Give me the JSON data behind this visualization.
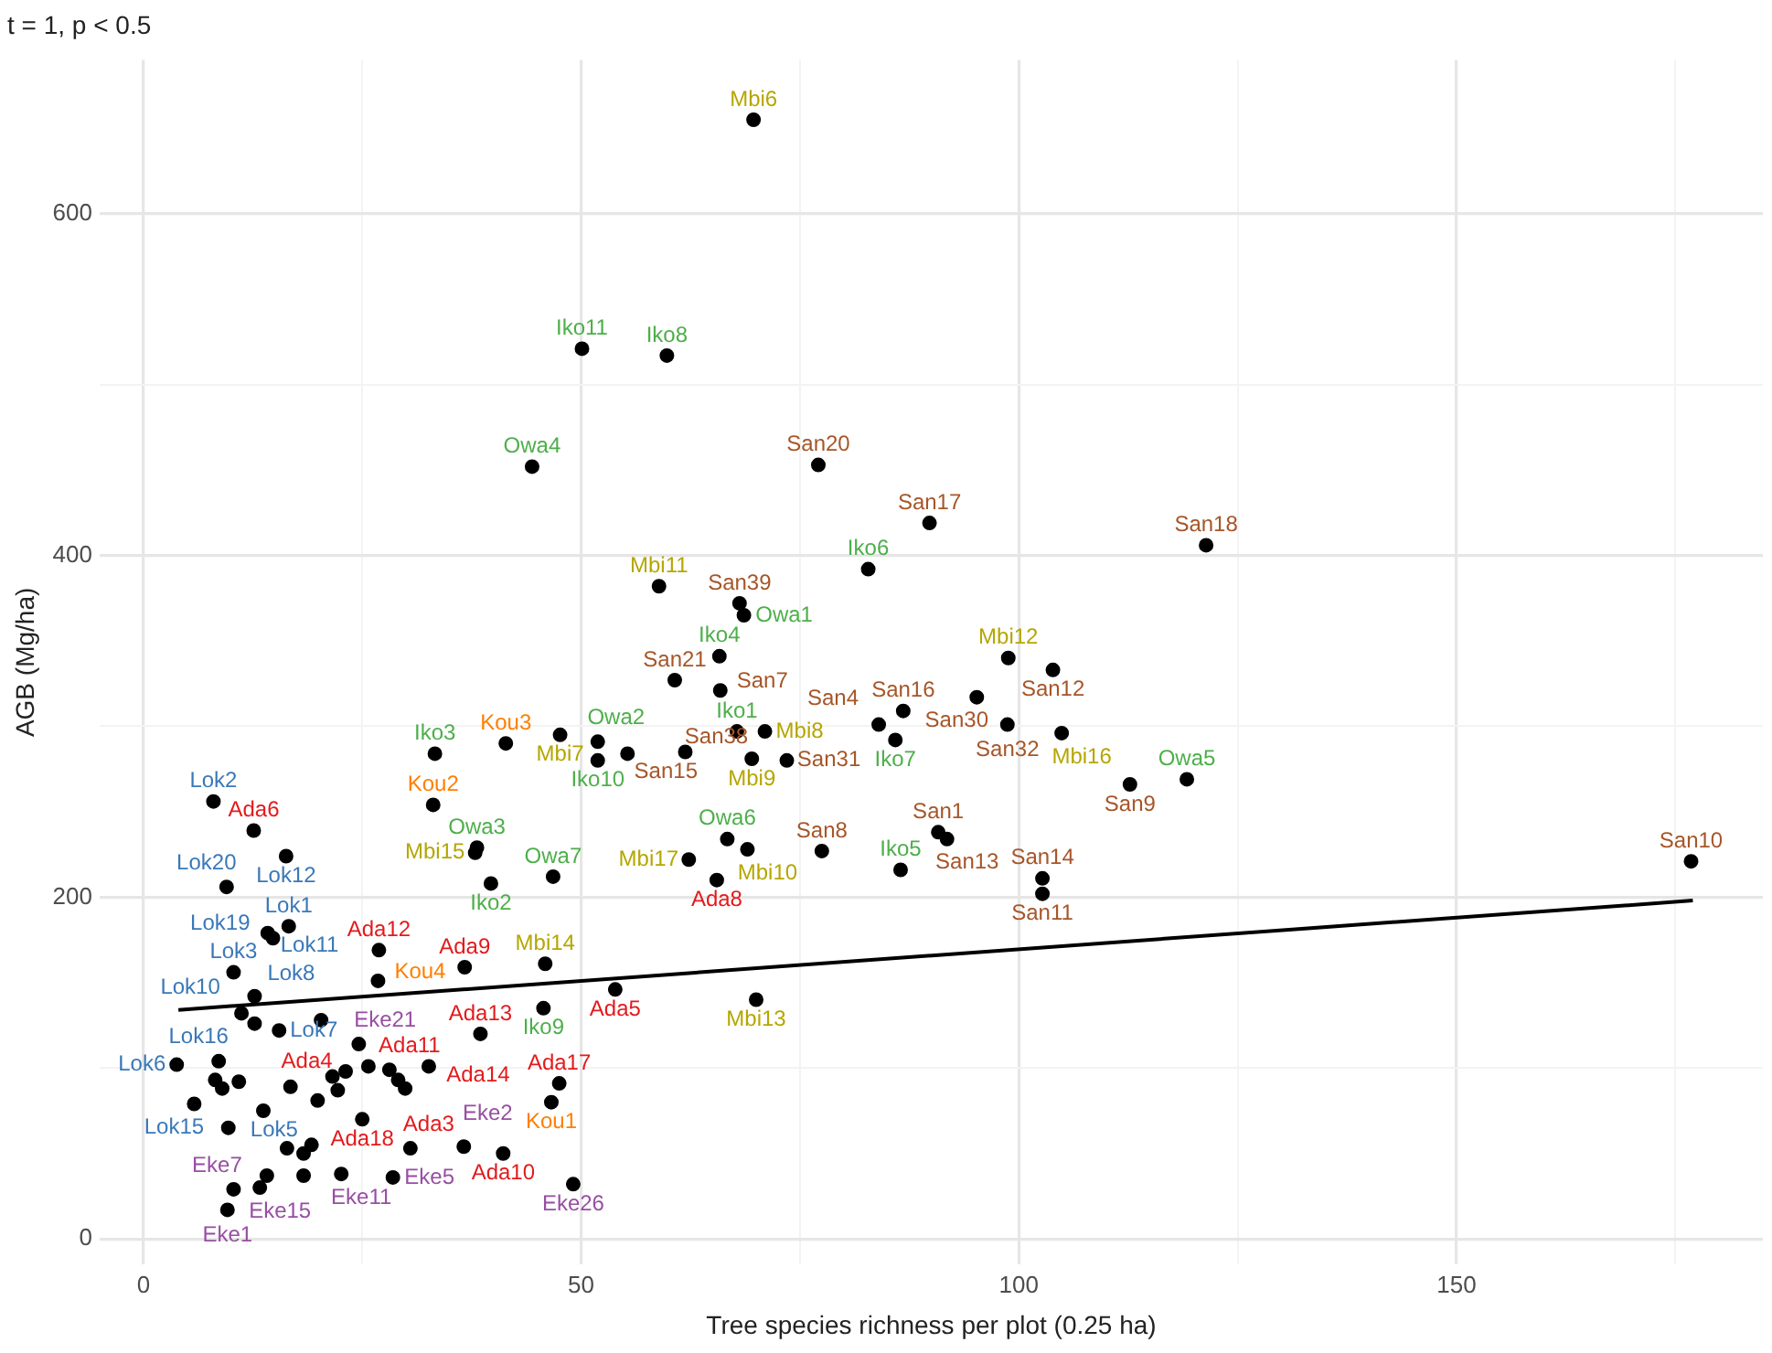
{
  "chart_data": {
    "type": "scatter",
    "title": "t = 1, p < 0.5",
    "xlabel": "Tree species richness per plot (0.25 ha)",
    "ylabel": "AGB (Mg/ha)",
    "xlim": [
      -5,
      185
    ],
    "ylim": [
      -15,
      690
    ],
    "xticks": [
      0,
      {
        "value": 25,
        "label": null
      },
      50,
      {
        "value": 75,
        "label": null
      },
      100,
      {
        "value": 125,
        "label": null
      },
      150,
      {
        "value": 175,
        "label": null
      }
    ],
    "yticks": [
      0,
      {
        "value": 100,
        "label": null
      },
      200,
      {
        "value": 300,
        "label": null
      },
      400,
      {
        "value": 500,
        "label": null
      },
      600
    ],
    "grid": true,
    "marker": "circle",
    "series": [
      {
        "color": "#3a78b8",
        "colors": [
          "#000000",
          "#000000",
          "#000000",
          "#000000",
          "#000000",
          "#000000",
          "#000000",
          "#000000",
          "#000000",
          "#000000",
          "#000000",
          "#000000",
          "#000000",
          "#000000"
        ],
        "x": [
          8,
          16.3,
          9.5,
          16.6,
          14.2,
          14.8,
          10.3,
          12.7,
          11.2,
          15.5,
          8.6,
          3.8,
          5.8,
          16.4
        ],
        "values": [
          256,
          224,
          206,
          183,
          179,
          176,
          156,
          142,
          132,
          122,
          104,
          102,
          79,
          53
        ],
        "value_labels": [
          "Lok2",
          "Lok12",
          "Lok20",
          "Lok1",
          "Lok19",
          "Lok11",
          "Lok3",
          "Lok8",
          "Lok10",
          "Lok7",
          "Lok16",
          "Lok6",
          "Lok15",
          "Lok5"
        ]
      },
      {
        "color": "#e41a1c",
        "colors": [
          "#000000",
          "#000000",
          "#000000",
          "#000000",
          "#000000",
          "#000000",
          "#000000",
          "#000000",
          "#000000",
          "#000000",
          "#000000",
          "#000000",
          "#000000"
        ],
        "x": [
          12.6,
          26.9,
          36.7,
          38.5,
          21.6,
          28.1,
          32.6,
          25,
          30.5,
          41.1,
          47.5,
          53.9,
          65.5
        ],
        "values": [
          239,
          169,
          159,
          120,
          95,
          99,
          101,
          70,
          53,
          50,
          91,
          146,
          210
        ],
        "value_labels": [
          "Ada6",
          "Ada12",
          "Ada9",
          "Ada13",
          "Ada4",
          "Ada11",
          "Ada14",
          "Ada18",
          "Ada3",
          "Ada10",
          "Ada17",
          "Ada5",
          "Ada8"
        ]
      },
      {
        "color": "#984ea3",
        "colors": [
          "#000000",
          "#000000",
          "#000000",
          "#000000",
          "#000000",
          "#000000",
          "#000000",
          "#000000"
        ],
        "x": [
          20.3,
          10.3,
          9.6,
          13.3,
          22.6,
          28.5,
          36.6,
          49.1
        ],
        "values": [
          128,
          29,
          17,
          30,
          38,
          36,
          54,
          32
        ],
        "value_labels": [
          "Eke21",
          "Eke7",
          "Eke1",
          "Eke15",
          "Eke11",
          "Eke5",
          "Eke2",
          "Eke26"
        ]
      },
      {
        "color": "#ff7f00",
        "colors": [
          "#000000",
          "#000000",
          "#000000",
          "#000000"
        ],
        "x": [
          33.1,
          41.4,
          26.8,
          46.6
        ],
        "values": [
          254,
          290,
          151,
          80
        ],
        "value_labels": [
          "Kou2",
          "Kou3",
          "Kou4",
          "Kou1"
        ]
      },
      {
        "color": "#4daf4a",
        "colors": [
          "#000000",
          "#000000",
          "#000000",
          "#000000",
          "#000000",
          "#000000",
          "#000000",
          "#000000",
          "#000000",
          "#000000",
          "#000000",
          "#000000",
          "#000000",
          "#000000",
          "#000000",
          "#000000",
          "#000000",
          "#000000"
        ],
        "x": [
          50.1,
          59.8,
          82.8,
          65.8,
          67.8,
          33.3,
          51.9,
          39.7,
          45.7,
          86.5,
          85.9,
          44.4,
          68.6,
          51.9,
          38.1,
          46.8,
          66.7,
          119.2
        ],
        "values": [
          521,
          517,
          392,
          341,
          297,
          284,
          280,
          208,
          135,
          216,
          292,
          452,
          365,
          291,
          229,
          212,
          234,
          269
        ],
        "value_labels": [
          "Iko11",
          "Iko8",
          "Iko6",
          "Iko4",
          "Iko1",
          "Iko3",
          "Iko10",
          "Iko2",
          "Iko9",
          "Iko5",
          "Iko7",
          "Owa4",
          "Owa1",
          "Owa2",
          "Owa3",
          "Owa7",
          "Owa6",
          "Owa5"
        ]
      },
      {
        "color": "#b5a600",
        "colors": [
          "#000000",
          "#000000",
          "#000000",
          "#000000",
          "#000000",
          "#000000",
          "#000000",
          "#000000",
          "#000000",
          "#000000",
          "#000000",
          "#000000"
        ],
        "x": [
          69.7,
          58.9,
          98.8,
          47.6,
          71,
          69.5,
          104.9,
          62.3,
          69,
          37.9,
          45.9,
          70
        ],
        "values": [
          655,
          382,
          340,
          295,
          297,
          281,
          296,
          222,
          228,
          226,
          161,
          140
        ],
        "value_labels": [
          "Mbi6",
          "Mbi11",
          "Mbi12",
          "Mbi7",
          "Mbi8",
          "Mbi9",
          "Mbi16",
          "Mbi17",
          "Mbi10",
          "Mbi15",
          "Mbi14",
          "Mbi13"
        ]
      },
      {
        "color": "#a65628",
        "colors": [
          "#000000",
          "#000000",
          "#000000",
          "#000000",
          "#000000",
          "#000000",
          "#000000",
          "#000000",
          "#000000",
          "#000000",
          "#000000",
          "#000000",
          "#000000",
          "#000000",
          "#000000",
          "#000000",
          "#000000",
          "#000000",
          "#000000",
          "#000000",
          "#000000"
        ],
        "x": [
          77.1,
          89.8,
          121.4,
          68.1,
          60.7,
          65.9,
          86.8,
          95.2,
          103.9,
          98.7,
          84,
          55.3,
          61.9,
          73.5,
          112.7,
          77.5,
          90.8,
          91.8,
          102.7,
          102.7,
          176.8
        ],
        "values": [
          453,
          419,
          406,
          372,
          327,
          321,
          309,
          317,
          333,
          301,
          301,
          284,
          285,
          280,
          266,
          227,
          238,
          234,
          211,
          202,
          221
        ],
        "value_labels": [
          "San20",
          "San17",
          "San18",
          "San39",
          "San21",
          "San7",
          "San16",
          "San30",
          "San12",
          "San32",
          "San4",
          "San15",
          "San38",
          "San31",
          "San9",
          "San8",
          "San1",
          "San13",
          "San14",
          "San11",
          "San10"
        ]
      },
      {
        "color": "#000000",
        "x": [
          8.2,
          9,
          10.9,
          9.7,
          13.7,
          16.8,
          12.7,
          23.1,
          22.2,
          19.9,
          24.6,
          25.7,
          29.1,
          29.9,
          14.1,
          18.3,
          18.3,
          19.2
        ],
        "values": [
          93,
          88,
          92,
          65,
          75,
          89,
          126,
          98,
          87,
          81,
          114,
          101,
          93,
          88,
          37,
          37,
          50,
          55
        ]
      },
      {
        "type": "line",
        "marker": "none",
        "color": "#000000",
        "x": [
          4,
          177
        ],
        "values": [
          134,
          198
        ]
      }
    ]
  }
}
